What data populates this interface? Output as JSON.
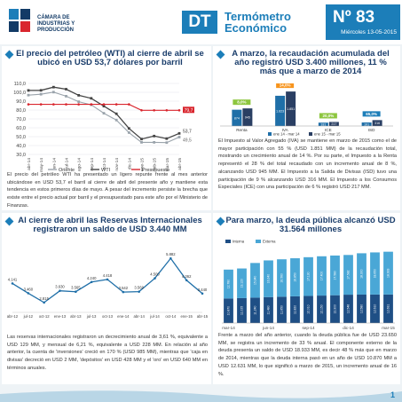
{
  "header": {
    "org_line1": "CÁMARA DE",
    "org_line2": "INDUSTRIAS Y",
    "org_line3": "PRODUCCIÓN",
    "badge": "DT",
    "title_line1": "Termómetro",
    "title_line2": "Económico",
    "number": "Nº 83",
    "date": "Miércoles 13-05-2015"
  },
  "oil": {
    "title": "El precio del petróleo (WTI) al cierre de abril se ubicó en USD 53,7 dólares por barril",
    "text": "El precio del petróleo WTI ha presentado un ligero repunte frente al mes anterior ubicándose en USD 53,7 el barril al cierre de abril del presente año y mantiene esta tendencia en estos primeros días de mayo. A pesar del incremento persiste la brecha que existe entre el precio actual por barril y el presupuestado para este año por el Ministerio de Finanzas.",
    "chart_data": {
      "type": "line",
      "x": [
        "abr-14",
        "may-14",
        "jun-14",
        "jul-14",
        "ago-14",
        "sep-14",
        "oct-14",
        "nov-14",
        "dic-14",
        "ene-15",
        "feb-15",
        "mar-15",
        "abr-15"
      ],
      "series": [
        {
          "name": "Oriente",
          "values": [
            96.8,
            97.8,
            100.2,
            95.6,
            89.4,
            85.9,
            76.4,
            68.7,
            54.6,
            43.6,
            43.6,
            43.3,
            49.5
          ],
          "color": "#9aa3ab"
        },
        {
          "name": "WTI",
          "values": [
            102.1,
            102.2,
            105.8,
            103.5,
            96.6,
            93.2,
            84.4,
            75.8,
            59.3,
            47.3,
            50.7,
            47.8,
            53.7
          ],
          "color": "#444444"
        },
        {
          "name": "Presupuesto",
          "values": [
            86.4,
            86.4,
            86.4,
            86.4,
            86.4,
            86.4,
            86.4,
            86.4,
            86.4,
            79.7,
            79.7,
            79.7,
            79.7
          ],
          "color": "#d9262e"
        }
      ],
      "end_labels": {
        "presupuesto": "79,7",
        "wti": "53,7",
        "oriente": "49,5"
      },
      "ylim": [
        30,
        110
      ],
      "yticks": [
        "30,0",
        "40,0",
        "50,0",
        "60,0",
        "70,0",
        "80,0",
        "90,0",
        "100,0",
        "110,0"
      ],
      "legend": "bottom"
    }
  },
  "iva": {
    "title": "A marzo, la recaudación acumulada del año registró USD 3.400 millones, 11 % más que a marzo de 2014",
    "text": "El Impuesto al Valor Agregado (IVA) se mantiene en marzo de 2015 como el de mayor participación con 55 % (USD 1.851 MM) de la recaudación total, mostrando un crecimiento anual de 14 %. Por su parte, el Impuesto a la Renta representó el 28 % del total recaudado con un incremento anual de 8 %, alcanzando USD 945 MM. El Impuesto a la Salida de Divisas (ISD) tuvo una participación de 9 % alcanzando USD 316 MM. El Impuesto a los Consumos Especiales (ICE) con una participación de 6 % registró USD 217 MM.",
    "chart_data": {
      "type": "bar",
      "categories": [
        "Renta",
        "IVA",
        "ICE",
        "ISD"
      ],
      "series": [
        {
          "name": "ene 14 - mar 14",
          "values": [
            874,
            1623,
            181,
            191
          ],
          "color": "#1f6fa8"
        },
        {
          "name": "ene 15 - mar 15",
          "values": [
            945,
            1851,
            217,
            316
          ],
          "color": "#2a3f63"
        }
      ],
      "growth_labels": [
        "8,0%",
        "14,0%",
        "20,0%",
        "65,0%"
      ],
      "legend": "bottom"
    }
  },
  "reserves": {
    "title": "Al cierre de abril las Reservas Internacionales registraron un saldo de USD 3.440 MM",
    "text": "Las reservas internacionales registraron un decrecimiento anual de 3,61 %, equivalente a USD 129 MM, y mensual de 6,21 %, equivalente a USD 228 MM. En relación al año anterior, la cuenta de 'inversiones' creció en 170 % (USD 985 MM), mientras que 'caja en divisas' decreció en USD 2 MM, 'depósitos' en USD 428 MM y el 'oro' en USD 640 MM en términos anuales.",
    "chart_data": {
      "type": "line",
      "x": [
        "abr-12",
        "jul-12",
        "oct-12",
        "ene-13",
        "abr-13",
        "jul-13",
        "oct-13",
        "ene-14",
        "abr-14",
        "jul-14",
        "oct-14",
        "ene-15",
        "abr-15"
      ],
      "values": [
        4141,
        3460,
        2815,
        3630,
        3565,
        4240,
        4418,
        3542,
        3569,
        4500,
        5882,
        4362,
        3440
      ],
      "color": "#1f6fa8",
      "point_labels": [
        "4.141",
        "3.460",
        "2.815",
        "3.630",
        "3.565",
        "4.240",
        "4.418",
        "3.542",
        "3.569",
        "4.500",
        "5.882",
        "4.362",
        "3.440"
      ]
    }
  },
  "debt": {
    "title": "Para marzo, la deuda pública alcanzó USD 31.564 millones",
    "text": "Frente a marzo del año anterior, cuando la deuda pública fue de USD 23.650 MM, se registra un incremento de 33 % anual. El componente externo de la deuda presenta un saldo de USD 18.933 MM, es decir 48 % más que en marzo de 2014, mientras que la deuda interna pasó en un año de USD 10.870 MM a USD 12.631 MM, lo que significó a marzo de 2015, un incremento anual de 16 %.",
    "chart_data": {
      "type": "bar",
      "stacked": true,
      "categories": [
        "mar-14",
        "abr-14",
        "may-14",
        "jun-14",
        "jul-14",
        "ago-14",
        "sep-14",
        "oct-14",
        "nov-14",
        "dic-14",
        "ene-15",
        "feb-15",
        "mar-15"
      ],
      "series": [
        {
          "name": "Interna",
          "values": [
            10870,
            11025,
            11240,
            11480,
            11650,
            11820,
            12010,
            12150,
            12300,
            12546,
            12580,
            12610,
            12631
          ],
          "color": "#1f4f85"
        },
        {
          "name": "Externa",
          "values": [
            12780,
            13120,
            15340,
            16240,
            16560,
            16850,
            17130,
            17400,
            17580,
            17582,
            18300,
            18650,
            18933
          ],
          "color": "#4aa7d6"
        }
      ],
      "tick_labels": [
        "mar-14",
        "jun-14",
        "sep-14",
        "dic-14",
        "mar-15"
      ],
      "legend": "top-left"
    }
  },
  "footer": {
    "page": "1"
  }
}
